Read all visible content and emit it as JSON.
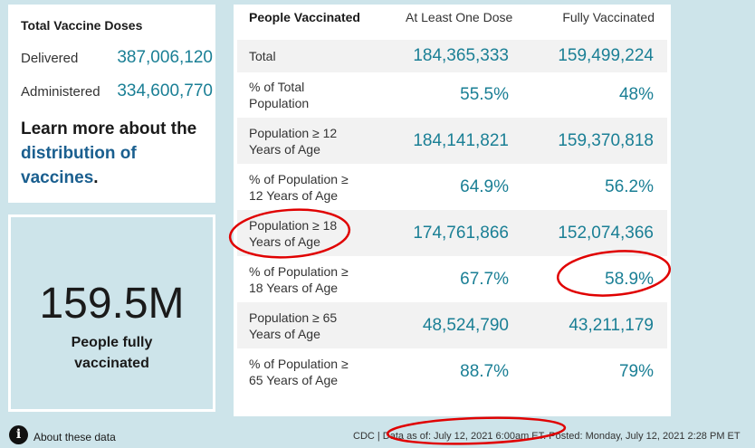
{
  "doses": {
    "title": "Total Vaccine Doses",
    "delivered_label": "Delivered",
    "delivered_value": "387,006,120",
    "administered_label": "Administered",
    "administered_value": "334,600,770"
  },
  "learn_more": {
    "prefix": "Learn more about the ",
    "link": "distribution of vaccines",
    "suffix": "."
  },
  "summary": {
    "value": "159.5M",
    "label": "People fully vaccinated"
  },
  "table": {
    "headers": [
      "People Vaccinated",
      "At Least One Dose",
      "Fully Vaccinated"
    ],
    "rows": [
      {
        "label": "Total",
        "one_dose": "184,365,333",
        "fully": "159,499,224"
      },
      {
        "label": "% of Total Population",
        "one_dose": "55.5%",
        "fully": "48%"
      },
      {
        "label": "Population ≥ 12 Years of Age",
        "one_dose": "184,141,821",
        "fully": "159,370,818"
      },
      {
        "label": "% of Population ≥ 12 Years of Age",
        "one_dose": "64.9%",
        "fully": "56.2%"
      },
      {
        "label": "Population ≥ 18 Years of Age",
        "one_dose": "174,761,866",
        "fully": "152,074,366"
      },
      {
        "label": "% of Population ≥ 18 Years of Age",
        "one_dose": "67.7%",
        "fully": "58.9%"
      },
      {
        "label": "Population ≥ 65 Years of Age",
        "one_dose": "48,524,790",
        "fully": "43,211,179"
      },
      {
        "label": "% of Population ≥ 65 Years of Age",
        "one_dose": "88.7%",
        "fully": "79%"
      }
    ]
  },
  "footer": {
    "info_icon": "info-icon",
    "about_link": "About these data",
    "note": "CDC | Data as of: July 12, 2021 6:00am ET. Posted: Monday, July 12, 2021 2:28 PM ET"
  },
  "colors": {
    "background": "#cde4ea",
    "accent": "#1a7f95",
    "link": "#1a5f8f",
    "annotation": "#e00000"
  }
}
